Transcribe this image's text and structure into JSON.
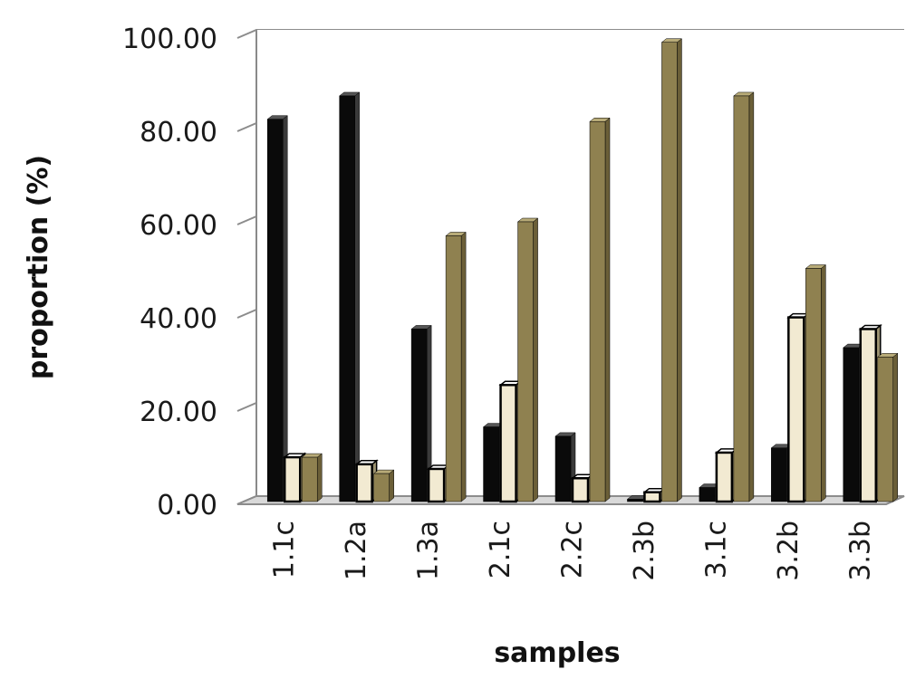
{
  "chart_data": {
    "type": "bar",
    "title": "",
    "xlabel": "samples",
    "ylabel": "proportion (%)",
    "ylim": [
      0,
      100
    ],
    "yticks": [
      "0.00",
      "20.00",
      "40.00",
      "60.00",
      "80.00",
      "100.00"
    ],
    "grid": true,
    "legend": "none",
    "categories": [
      "1.1c",
      "1.2a",
      "1.3a",
      "2.1c",
      "2.2c",
      "2.3b",
      "3.1c",
      "3.2b",
      "3.3b"
    ],
    "series": [
      {
        "color": "#0a0a0a",
        "side": "#3a3a3a",
        "top": "#555555",
        "values": [
          82,
          87,
          37,
          16,
          14,
          0.5,
          3,
          11.5,
          33
        ]
      },
      {
        "color": "#f2ead2",
        "side": "#9c9270",
        "top": "#ffffff",
        "values": [
          9.5,
          8,
          7,
          25,
          5,
          2,
          10.5,
          39.5,
          37
        ]
      },
      {
        "color": "#8f8150",
        "side": "#6b5f38",
        "top": "#b8ab78",
        "values": [
          9.5,
          6,
          57,
          60,
          81.5,
          98.5,
          87,
          50,
          31
        ]
      }
    ]
  }
}
